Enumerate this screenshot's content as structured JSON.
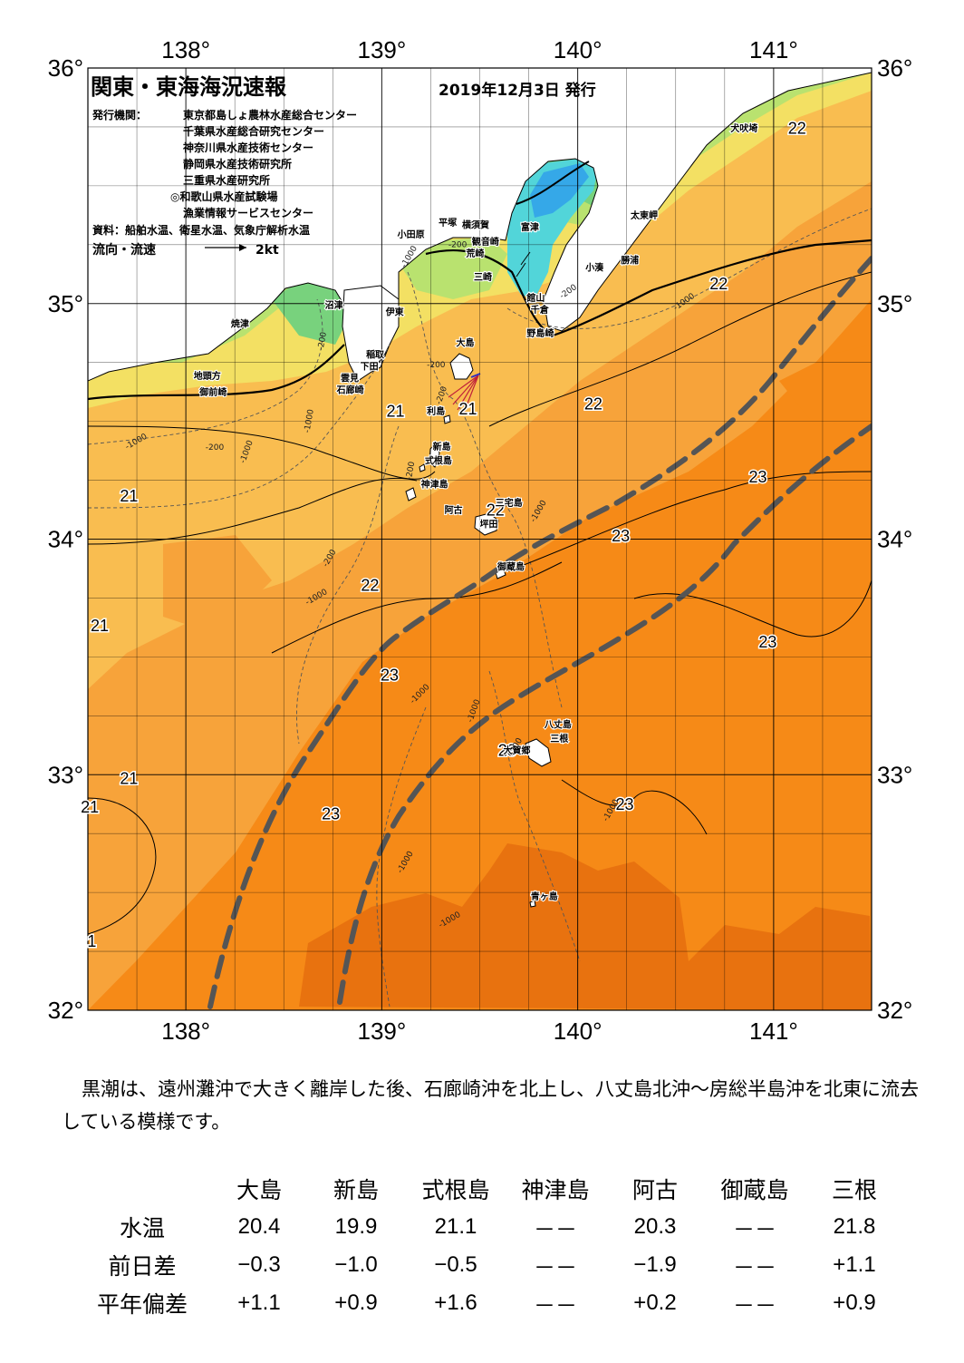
{
  "header": {
    "title": "関東・東海海況速報",
    "issue_date": "2019年12月3日 発行",
    "publisher_label": "発行機関：",
    "publishers": [
      "東京都島しょ農林水産総合センター",
      "千葉県水産総合研究センター",
      "神奈川県水産技術センター",
      "静岡県水産技術研究所",
      "三重県水産研究所",
      "◎和歌山県水産試験場",
      "漁業情報サービスセンター"
    ],
    "source": "資料：船舶水温、衛星水温、気象庁解析水温",
    "flow_label": "流向・流速",
    "flow_scale": "2kt"
  },
  "axes": {
    "lon_labels": [
      "138°",
      "139°",
      "140°",
      "141°"
    ],
    "lat_labels": [
      "36°",
      "35°",
      "34°",
      "33°",
      "32°"
    ],
    "lon_range": [
      137.5,
      141.5
    ],
    "lat_range": [
      32,
      36
    ]
  },
  "colors": {
    "orange_dark": "#e8720f",
    "orange": "#f68a17",
    "orange_light": "#f7a33a",
    "yellow_orange": "#f9bd50",
    "yellow": "#f3e063",
    "yellow_green": "#b9e26f",
    "green": "#78d27d",
    "cyan": "#52d5d9",
    "blue": "#35a8e8",
    "kuroshio": "#555555"
  },
  "isotherm_labels": [
    {
      "text": "22",
      "lon": 141.12,
      "lat": 35.72
    },
    {
      "text": "22",
      "lon": 140.72,
      "lat": 35.06
    },
    {
      "text": "22",
      "lon": 140.08,
      "lat": 34.55
    },
    {
      "text": "21",
      "lon": 139.07,
      "lat": 34.52
    },
    {
      "text": "21",
      "lon": 139.44,
      "lat": 34.53
    },
    {
      "text": "21",
      "lon": 137.71,
      "lat": 34.16
    },
    {
      "text": "22",
      "lon": 139.58,
      "lat": 34.1
    },
    {
      "text": "23",
      "lon": 140.22,
      "lat": 33.99
    },
    {
      "text": "23",
      "lon": 140.92,
      "lat": 34.24
    },
    {
      "text": "22",
      "lon": 138.94,
      "lat": 33.78
    },
    {
      "text": "21",
      "lon": 137.56,
      "lat": 33.61
    },
    {
      "text": "23",
      "lon": 140.97,
      "lat": 33.54
    },
    {
      "text": "23",
      "lon": 139.04,
      "lat": 33.4
    },
    {
      "text": "23",
      "lon": 139.64,
      "lat": 33.08
    },
    {
      "text": "21",
      "lon": 137.71,
      "lat": 32.96
    },
    {
      "text": "21",
      "lon": 137.51,
      "lat": 32.84
    },
    {
      "text": "23",
      "lon": 138.74,
      "lat": 32.81
    },
    {
      "text": "23",
      "lon": 140.24,
      "lat": 32.85
    },
    {
      "text": "1",
      "lon": 137.52,
      "lat": 32.27
    }
  ],
  "place_names": [
    {
      "text": "犬吠埼",
      "lon": 140.78,
      "lat": 35.73
    },
    {
      "text": "太東岬",
      "lon": 140.27,
      "lat": 35.36
    },
    {
      "text": "勝浦",
      "lon": 140.22,
      "lat": 35.17
    },
    {
      "text": "小湊",
      "lon": 140.04,
      "lat": 35.14
    },
    {
      "text": "小田原",
      "lon": 139.08,
      "lat": 35.28
    },
    {
      "text": "平塚",
      "lon": 139.29,
      "lat": 35.33
    },
    {
      "text": "横須賀",
      "lon": 139.41,
      "lat": 35.32
    },
    {
      "text": "富津",
      "lon": 139.71,
      "lat": 35.31
    },
    {
      "text": "観音崎",
      "lon": 139.46,
      "lat": 35.25
    },
    {
      "text": "荒崎",
      "lon": 139.43,
      "lat": 35.2
    },
    {
      "text": "三崎",
      "lon": 139.47,
      "lat": 35.1
    },
    {
      "text": "館山",
      "lon": 139.74,
      "lat": 35.01
    },
    {
      "text": "千倉",
      "lon": 139.76,
      "lat": 34.96
    },
    {
      "text": "野島崎",
      "lon": 139.74,
      "lat": 34.86
    },
    {
      "text": "沼津",
      "lon": 138.71,
      "lat": 34.98
    },
    {
      "text": "伊東",
      "lon": 139.02,
      "lat": 34.95
    },
    {
      "text": "焼津",
      "lon": 138.23,
      "lat": 34.9
    },
    {
      "text": "大島",
      "lon": 139.38,
      "lat": 34.82
    },
    {
      "text": "稲取",
      "lon": 138.92,
      "lat": 34.77
    },
    {
      "text": "下田",
      "lon": 138.89,
      "lat": 34.72
    },
    {
      "text": "雲見",
      "lon": 138.79,
      "lat": 34.67
    },
    {
      "text": "石廊崎",
      "lon": 138.77,
      "lat": 34.62
    },
    {
      "text": "地頭方",
      "lon": 138.04,
      "lat": 34.68
    },
    {
      "text": "御前崎",
      "lon": 138.07,
      "lat": 34.61
    },
    {
      "text": "利島",
      "lon": 139.23,
      "lat": 34.53
    },
    {
      "text": "新島",
      "lon": 139.26,
      "lat": 34.38
    },
    {
      "text": "式根島",
      "lon": 139.22,
      "lat": 34.32
    },
    {
      "text": "神津島",
      "lon": 139.2,
      "lat": 34.22
    },
    {
      "text": "三宅島",
      "lon": 139.58,
      "lat": 34.14
    },
    {
      "text": "阿古",
      "lon": 139.32,
      "lat": 34.11
    },
    {
      "text": "坪田",
      "lon": 139.5,
      "lat": 34.05
    },
    {
      "text": "御蔵島",
      "lon": 139.59,
      "lat": 33.87
    },
    {
      "text": "八丈島",
      "lon": 139.83,
      "lat": 33.2
    },
    {
      "text": "三根",
      "lon": 139.86,
      "lat": 33.14
    },
    {
      "text": "大賀郷",
      "lon": 139.62,
      "lat": 33.09
    },
    {
      "text": "青ヶ島",
      "lon": 139.76,
      "lat": 32.47
    }
  ],
  "depth_labels": [
    {
      "text": "-1000",
      "lon": 139.12,
      "lat": 35.15,
      "rot": -60
    },
    {
      "text": "-200",
      "lon": 139.34,
      "lat": 35.24,
      "rot": 0
    },
    {
      "text": "-200",
      "lon": 139.92,
      "lat": 35.02,
      "rot": -35
    },
    {
      "text": "-1000",
      "lon": 140.5,
      "lat": 34.97,
      "rot": -35
    },
    {
      "text": "-200",
      "lon": 138.7,
      "lat": 34.8,
      "rot": -80
    },
    {
      "text": "-200",
      "lon": 139.23,
      "lat": 34.73,
      "rot": 0
    },
    {
      "text": "-200",
      "lon": 139.3,
      "lat": 34.57,
      "rot": -70
    },
    {
      "text": "-1000",
      "lon": 138.63,
      "lat": 34.45,
      "rot": -80
    },
    {
      "text": "-200",
      "lon": 138.1,
      "lat": 34.38,
      "rot": 0
    },
    {
      "text": "-1000",
      "lon": 137.7,
      "lat": 34.38,
      "rot": -30
    },
    {
      "text": "-1000",
      "lon": 138.3,
      "lat": 34.32,
      "rot": -70
    },
    {
      "text": "-200",
      "lon": 139.15,
      "lat": 34.25,
      "rot": -80
    },
    {
      "text": "-1000",
      "lon": 139.78,
      "lat": 34.07,
      "rot": -60
    },
    {
      "text": "-200",
      "lon": 138.72,
      "lat": 33.88,
      "rot": -60
    },
    {
      "text": "-1000",
      "lon": 138.62,
      "lat": 33.72,
      "rot": -30
    },
    {
      "text": "-1000",
      "lon": 139.16,
      "lat": 33.3,
      "rot": -45
    },
    {
      "text": "-1000",
      "lon": 139.46,
      "lat": 33.22,
      "rot": -70
    },
    {
      "text": "-200",
      "lon": 139.67,
      "lat": 33.08,
      "rot": -60
    },
    {
      "text": "-1000",
      "lon": 139.1,
      "lat": 32.58,
      "rot": -60
    },
    {
      "text": "-1000",
      "lon": 139.3,
      "lat": 32.35,
      "rot": -30
    },
    {
      "text": "-1000",
      "lon": 140.15,
      "lat": 32.8,
      "rot": -60
    }
  ],
  "summary": "黒潮は、遠州灘沖で大きく離岸した後、石廊崎沖を北上し、八丈島北沖～房総半島沖を北東に流去している模様です。",
  "observations": {
    "stations": [
      "大島",
      "新島",
      "式根島",
      "神津島",
      "阿古",
      "御蔵島",
      "三根"
    ],
    "rows": [
      {
        "label": "水温",
        "values": [
          "20.4",
          "19.9",
          "21.1",
          "－－",
          "20.3",
          "－－",
          "21.8"
        ]
      },
      {
        "label": "前日差",
        "values": [
          "−0.3",
          "−1.0",
          "−0.5",
          "－－",
          "−1.9",
          "－－",
          "+1.1"
        ]
      },
      {
        "label": "平年偏差",
        "values": [
          "+1.1",
          "+0.9",
          "+1.6",
          "－－",
          "+0.2",
          "－－",
          "+0.9"
        ]
      }
    ]
  }
}
